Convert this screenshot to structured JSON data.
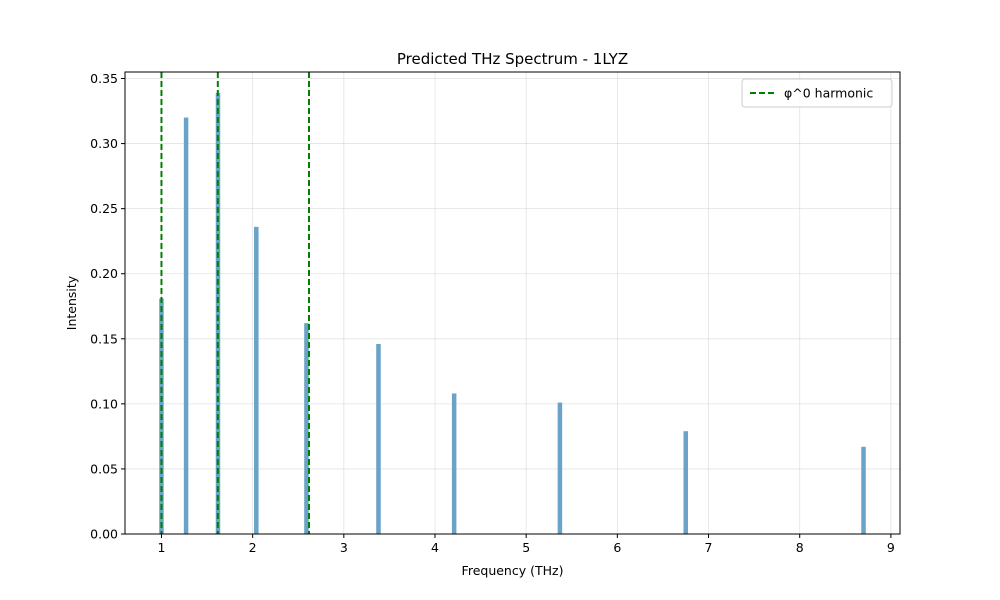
{
  "chart_data": {
    "type": "bar",
    "title": "Predicted THz Spectrum - 1LYZ",
    "xlabel": "Frequency (THz)",
    "ylabel": "Intensity",
    "xlim": [
      0.6,
      9.1
    ],
    "ylim": [
      0,
      0.355
    ],
    "xticks": [
      "1",
      "2",
      "3",
      "4",
      "5",
      "6",
      "7",
      "8",
      "9"
    ],
    "yticks": [
      "0.00",
      "0.05",
      "0.10",
      "0.15",
      "0.20",
      "0.25",
      "0.30",
      "0.35"
    ],
    "grid": true,
    "bar_color": "#6aa2c8",
    "bars": [
      {
        "x": 1.0,
        "y": 0.181
      },
      {
        "x": 1.27,
        "y": 0.32
      },
      {
        "x": 1.62,
        "y": 0.339
      },
      {
        "x": 2.04,
        "y": 0.236
      },
      {
        "x": 2.59,
        "y": 0.162
      },
      {
        "x": 3.38,
        "y": 0.146
      },
      {
        "x": 4.21,
        "y": 0.108
      },
      {
        "x": 5.37,
        "y": 0.101
      },
      {
        "x": 6.75,
        "y": 0.079
      },
      {
        "x": 8.7,
        "y": 0.067
      }
    ],
    "harmonic_lines": {
      "name": "φ^0 harmonic",
      "color": "#008000",
      "style": "dashed",
      "x": [
        1.0,
        1.618,
        2.618
      ]
    },
    "legend": {
      "position": "top-right",
      "entries": [
        "φ^0 harmonic"
      ]
    }
  }
}
